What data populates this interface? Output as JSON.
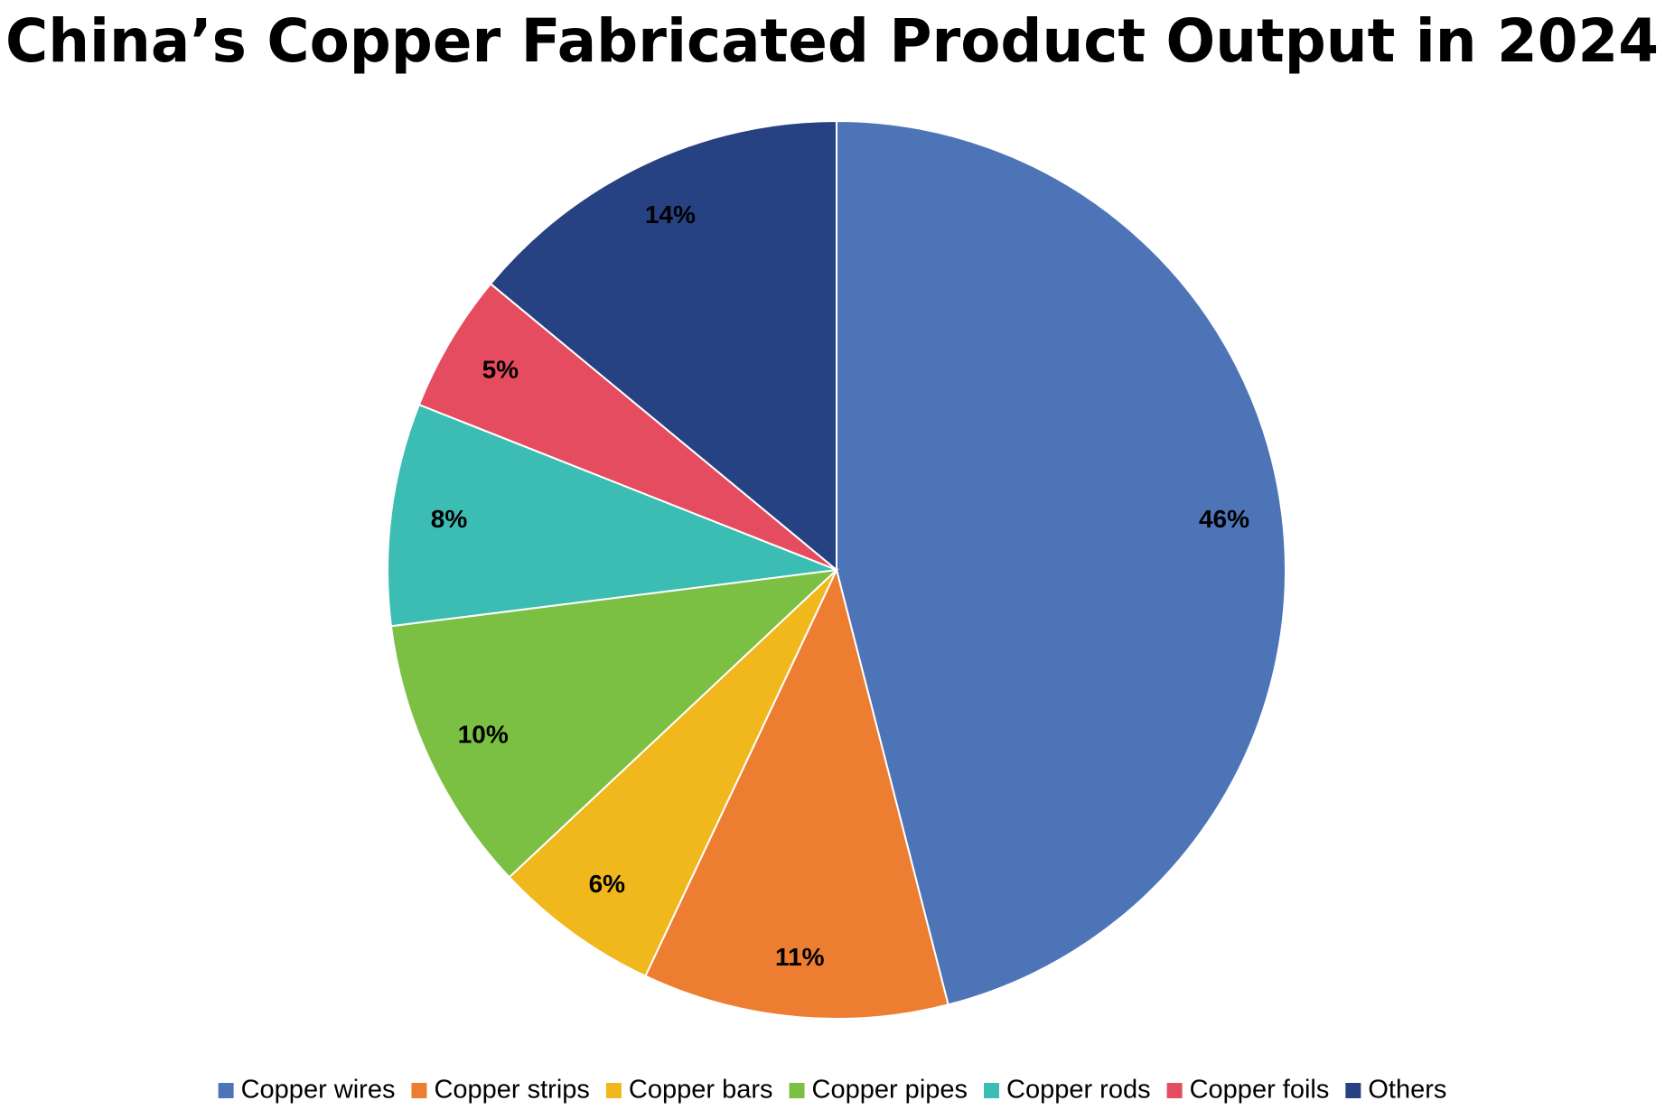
{
  "chart_data": {
    "type": "pie",
    "title": "China’s Copper Fabricated Product Output in 2024",
    "categories": [
      "Copper wires",
      "Copper strips",
      "Copper bars",
      "Copper pipes",
      "Copper rods",
      "Copper foils",
      "Others"
    ],
    "values": [
      46,
      11,
      6,
      10,
      8,
      5,
      14
    ],
    "value_labels": [
      "46%",
      "11%",
      "6%",
      "10%",
      "8%",
      "5%",
      "14%"
    ],
    "colors": [
      "#4e74b8",
      "#ed7d31",
      "#f0b81c",
      "#7bbf43",
      "#3bbdb4",
      "#e64c60",
      "#264282"
    ],
    "legend": "bottom"
  }
}
